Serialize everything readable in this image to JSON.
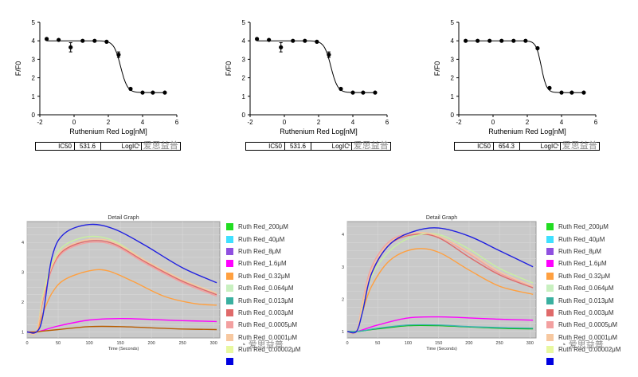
{
  "top_charts": [
    {
      "ylabel": "F/F0",
      "xlabel": "Ruthenium Red  Log[nM]",
      "yticks": [
        0,
        1,
        2,
        3,
        4,
        5
      ],
      "xticks": [
        -2,
        0,
        2,
        4,
        6
      ],
      "xlim": [
        -2,
        6
      ],
      "ylim": [
        0,
        5
      ],
      "points": [
        {
          "x": -1.6,
          "y": 4.1
        },
        {
          "x": -0.9,
          "y": 4.05
        },
        {
          "x": -0.2,
          "y": 3.65,
          "err": 0.25
        },
        {
          "x": 0.5,
          "y": 4.0
        },
        {
          "x": 1.2,
          "y": 4.0
        },
        {
          "x": 1.9,
          "y": 3.95
        },
        {
          "x": 2.6,
          "y": 3.25,
          "err": 0.15
        },
        {
          "x": 3.3,
          "y": 1.4
        },
        {
          "x": 4.0,
          "y": 1.2
        },
        {
          "x": 4.6,
          "y": 1.2
        },
        {
          "x": 5.3,
          "y": 1.2
        }
      ],
      "fit": {
        "top": 4.0,
        "bottom": 1.2,
        "logic50": 2.72,
        "hill": -2.2
      },
      "table": {
        "label": "IC50",
        "value": "531.6",
        "label2": "LogIC"
      }
    },
    {
      "ylabel": "F/F0",
      "xlabel": "Ruthenium Red  Log[nM]",
      "yticks": [
        0,
        1,
        2,
        3,
        4,
        5
      ],
      "xticks": [
        -2,
        0,
        2,
        4,
        6
      ],
      "xlim": [
        -2,
        6
      ],
      "ylim": [
        0,
        5
      ],
      "points": [
        {
          "x": -1.6,
          "y": 4.1
        },
        {
          "x": -0.9,
          "y": 4.05
        },
        {
          "x": -0.2,
          "y": 3.65,
          "err": 0.25
        },
        {
          "x": 0.5,
          "y": 4.0
        },
        {
          "x": 1.2,
          "y": 4.0
        },
        {
          "x": 1.9,
          "y": 3.95
        },
        {
          "x": 2.6,
          "y": 3.25,
          "err": 0.15
        },
        {
          "x": 3.3,
          "y": 1.4
        },
        {
          "x": 4.0,
          "y": 1.2
        },
        {
          "x": 4.6,
          "y": 1.2
        },
        {
          "x": 5.3,
          "y": 1.2
        }
      ],
      "fit": {
        "top": 4.0,
        "bottom": 1.2,
        "logic50": 2.72,
        "hill": -2.2
      },
      "table": {
        "label": "IC50",
        "value": "531.6",
        "label2": "LogIC"
      }
    },
    {
      "ylabel": "F/F0",
      "xlabel": "Ruthenium Red  Log[nM]",
      "yticks": [
        0,
        1,
        2,
        3,
        4,
        5
      ],
      "xticks": [
        -2,
        0,
        2,
        4,
        6
      ],
      "xlim": [
        -2,
        6
      ],
      "ylim": [
        0,
        5
      ],
      "points": [
        {
          "x": -1.6,
          "y": 4.0
        },
        {
          "x": -0.9,
          "y": 4.0
        },
        {
          "x": -0.2,
          "y": 4.0
        },
        {
          "x": 0.5,
          "y": 4.0
        },
        {
          "x": 1.2,
          "y": 4.0
        },
        {
          "x": 1.9,
          "y": 4.0
        },
        {
          "x": 2.6,
          "y": 3.6
        },
        {
          "x": 3.3,
          "y": 1.45
        },
        {
          "x": 4.0,
          "y": 1.2
        },
        {
          "x": 4.6,
          "y": 1.2
        },
        {
          "x": 5.3,
          "y": 1.2
        }
      ],
      "fit": {
        "top": 4.0,
        "bottom": 1.2,
        "logic50": 2.82,
        "hill": -2.8
      },
      "table": {
        "label": "IC50",
        "value": "654.3",
        "label2": "LogIC"
      }
    }
  ],
  "bottom_charts": [
    {
      "title": "Detail Graph",
      "xlabel": "Time (Seconds)",
      "xlim": [
        0,
        310
      ],
      "ylim": [
        0.8,
        4.7
      ],
      "xticks": [
        0,
        50,
        100,
        150,
        200,
        250,
        300
      ],
      "yticks": [
        1,
        2,
        3,
        4
      ],
      "series": [
        {
          "color": "#ff00ff",
          "p": [
            [
              0,
              1.0
            ],
            [
              15,
              1.0
            ],
            [
              25,
              1.05
            ],
            [
              50,
              1.2
            ],
            [
              100,
              1.4
            ],
            [
              150,
              1.45
            ],
            [
              200,
              1.42
            ],
            [
              250,
              1.38
            ],
            [
              305,
              1.35
            ]
          ]
        },
        {
          "color": "#b85c00",
          "p": [
            [
              0,
              1.0
            ],
            [
              15,
              1.0
            ],
            [
              25,
              1.03
            ],
            [
              50,
              1.08
            ],
            [
              100,
              1.18
            ],
            [
              150,
              1.18
            ],
            [
              200,
              1.14
            ],
            [
              250,
              1.1
            ],
            [
              305,
              1.08
            ]
          ]
        },
        {
          "color": "#ffa040",
          "p": [
            [
              0,
              1.0
            ],
            [
              15,
              1.0
            ],
            [
              25,
              1.6
            ],
            [
              40,
              2.3
            ],
            [
              60,
              2.75
            ],
            [
              100,
              3.05
            ],
            [
              130,
              3.05
            ],
            [
              170,
              2.7
            ],
            [
              220,
              2.2
            ],
            [
              270,
              1.95
            ],
            [
              305,
              1.9
            ]
          ]
        },
        {
          "color": "#c8f0a0",
          "p": [
            [
              0,
              1.0
            ],
            [
              15,
              1.0
            ],
            [
              25,
              2.2
            ],
            [
              40,
              3.3
            ],
            [
              60,
              3.9
            ],
            [
              100,
              4.2
            ],
            [
              140,
              4.05
            ],
            [
              190,
              3.4
            ],
            [
              250,
              2.75
            ],
            [
              305,
              2.3
            ]
          ]
        },
        {
          "color": "#f3a0a0",
          "p": [
            [
              0,
              1.0
            ],
            [
              15,
              1.0
            ],
            [
              25,
              2.0
            ],
            [
              40,
              3.1
            ],
            [
              60,
              3.7
            ],
            [
              100,
              4.0
            ],
            [
              140,
              3.9
            ],
            [
              190,
              3.3
            ],
            [
              250,
              2.65
            ],
            [
              305,
              2.2
            ]
          ]
        },
        {
          "color": "#e06a6a",
          "p": [
            [
              0,
              1.0
            ],
            [
              15,
              1.0
            ],
            [
              25,
              2.05
            ],
            [
              40,
              3.15
            ],
            [
              60,
              3.75
            ],
            [
              100,
              4.05
            ],
            [
              140,
              3.95
            ],
            [
              190,
              3.35
            ],
            [
              250,
              2.7
            ],
            [
              305,
              2.25
            ]
          ]
        },
        {
          "color": "#f7c8a0",
          "p": [
            [
              0,
              1.0
            ],
            [
              15,
              1.0
            ],
            [
              25,
              2.1
            ],
            [
              40,
              3.2
            ],
            [
              60,
              3.8
            ],
            [
              100,
              4.1
            ],
            [
              140,
              4.0
            ],
            [
              190,
              3.4
            ],
            [
              250,
              2.75
            ],
            [
              305,
              2.3
            ]
          ]
        },
        {
          "color": "#2020e0",
          "p": [
            [
              0,
              1.0
            ],
            [
              15,
              1.0
            ],
            [
              25,
              1.5
            ],
            [
              40,
              3.5
            ],
            [
              60,
              4.3
            ],
            [
              100,
              4.6
            ],
            [
              140,
              4.45
            ],
            [
              190,
              3.9
            ],
            [
              250,
              3.15
            ],
            [
              305,
              2.65
            ]
          ]
        }
      ]
    },
    {
      "title": "Detail Graph",
      "xlabel": "Time (Seconds)",
      "xlim": [
        0,
        310
      ],
      "ylim": [
        0.8,
        4.4
      ],
      "xticks": [
        0,
        50,
        100,
        150,
        200,
        250,
        300
      ],
      "yticks": [
        1,
        2,
        3,
        4
      ],
      "series": [
        {
          "color": "#ff00ff",
          "p": [
            [
              0,
              1.0
            ],
            [
              15,
              1.0
            ],
            [
              25,
              1.05
            ],
            [
              50,
              1.2
            ],
            [
              100,
              1.42
            ],
            [
              150,
              1.45
            ],
            [
              200,
              1.42
            ],
            [
              250,
              1.38
            ],
            [
              305,
              1.35
            ]
          ]
        },
        {
          "color": "#00c000",
          "p": [
            [
              0,
              1.0
            ],
            [
              15,
              1.0
            ],
            [
              25,
              1.02
            ],
            [
              50,
              1.08
            ],
            [
              100,
              1.18
            ],
            [
              150,
              1.18
            ],
            [
              200,
              1.14
            ],
            [
              250,
              1.1
            ],
            [
              305,
              1.08
            ]
          ]
        },
        {
          "color": "#3ab0b0",
          "p": [
            [
              0,
              1.0
            ],
            [
              15,
              1.0
            ],
            [
              25,
              1.02
            ],
            [
              50,
              1.1
            ],
            [
              100,
              1.2
            ],
            [
              150,
              1.2
            ],
            [
              200,
              1.15
            ],
            [
              250,
              1.12
            ],
            [
              305,
              1.1
            ]
          ]
        },
        {
          "color": "#ffa040",
          "p": [
            [
              0,
              1.0
            ],
            [
              15,
              1.0
            ],
            [
              25,
              1.6
            ],
            [
              40,
              2.4
            ],
            [
              70,
              3.2
            ],
            [
              110,
              3.55
            ],
            [
              150,
              3.45
            ],
            [
              200,
              2.9
            ],
            [
              250,
              2.4
            ],
            [
              305,
              2.15
            ]
          ]
        },
        {
          "color": "#e06a6a",
          "p": [
            [
              0,
              1.0
            ],
            [
              15,
              1.0
            ],
            [
              25,
              1.8
            ],
            [
              40,
              2.8
            ],
            [
              70,
              3.7
            ],
            [
              110,
              4.0
            ],
            [
              150,
              3.9
            ],
            [
              200,
              3.3
            ],
            [
              250,
              2.75
            ],
            [
              305,
              2.35
            ]
          ]
        },
        {
          "color": "#f3a0a0",
          "p": [
            [
              0,
              1.0
            ],
            [
              15,
              1.0
            ],
            [
              25,
              1.9
            ],
            [
              40,
              3.0
            ],
            [
              70,
              3.8
            ],
            [
              110,
              4.05
            ],
            [
              150,
              3.95
            ],
            [
              200,
              3.4
            ],
            [
              250,
              2.8
            ],
            [
              305,
              2.4
            ]
          ]
        },
        {
          "color": "#c8f0a0",
          "p": [
            [
              0,
              1.0
            ],
            [
              15,
              1.0
            ],
            [
              25,
              1.7
            ],
            [
              40,
              2.7
            ],
            [
              70,
              3.5
            ],
            [
              110,
              3.95
            ],
            [
              150,
              4.0
            ],
            [
              200,
              3.55
            ],
            [
              250,
              2.95
            ],
            [
              305,
              2.5
            ]
          ]
        },
        {
          "color": "#f7c8a0",
          "p": [
            [
              0,
              1.0
            ],
            [
              15,
              1.0
            ],
            [
              25,
              1.85
            ],
            [
              40,
              2.9
            ],
            [
              70,
              3.75
            ],
            [
              110,
              4.05
            ],
            [
              150,
              3.95
            ],
            [
              200,
              3.45
            ],
            [
              250,
              2.85
            ],
            [
              305,
              2.4
            ]
          ]
        },
        {
          "color": "#2020e0",
          "p": [
            [
              0,
              1.0
            ],
            [
              15,
              1.0
            ],
            [
              25,
              1.6
            ],
            [
              40,
              2.8
            ],
            [
              70,
              3.7
            ],
            [
              110,
              4.1
            ],
            [
              150,
              4.2
            ],
            [
              200,
              3.95
            ],
            [
              250,
              3.5
            ],
            [
              305,
              3.0
            ]
          ]
        }
      ]
    }
  ],
  "legend": [
    {
      "label": "Ruth Red_200μM",
      "color": "#22dd22"
    },
    {
      "label": "Ruth Red_40μM",
      "color": "#40e0ff"
    },
    {
      "label": "Ruth Red_8μM",
      "color": "#9050e0"
    },
    {
      "label": "Ruth Red_1.6μM",
      "color": "#ff00ff"
    },
    {
      "label": "Ruth Red_0.32μM",
      "color": "#ffa040"
    },
    {
      "label": "Ruth Red_0.064μM",
      "color": "#c8f0c0"
    },
    {
      "label": "Ruth Red_0.013μM",
      "color": "#3ab0a0"
    },
    {
      "label": "Ruth Red_0.003μM",
      "color": "#e06a6a"
    },
    {
      "label": "Ruth Red_0.0005μM",
      "color": "#f3a0a0"
    },
    {
      "label": "Ruth Red_0.0001μM",
      "color": "#f7c8a0"
    },
    {
      "label": "Ruth Red_0.00002μM",
      "color": "#e8f8a0"
    },
    {
      "label": "",
      "color": "#0000e0"
    }
  ],
  "watermark": "爱思益普"
}
